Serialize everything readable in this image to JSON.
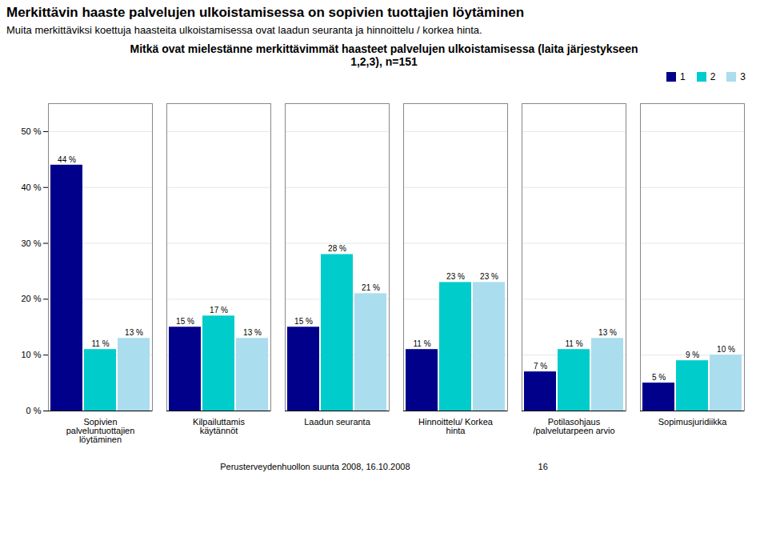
{
  "chart_data": {
    "type": "bar",
    "title": "Merkittävin haaste palvelujen ulkoistamisessa on sopivien tuottajien löytäminen",
    "subtitle": "Muita merkittäviksi koettuja haasteita ulkoistamisessa ovat laadun seuranta ja hinnoittelu / korkea hinta.",
    "chart_title": "Mitkä ovat mielestänne merkittävimmät haasteet palvelujen ulkoistamisessa (laita järjestykseen\n1,2,3), n=151",
    "annotations": [
      "Perusterveydenhuollon suunta 2008, 16.10.2008",
      "16"
    ],
    "categories": [
      "Sopivien\npalveluntuottajien\nlöytäminen",
      "Kilpailuttamis\nkäytännöt",
      "Laadun seuranta",
      "Hinnoittelu/ Korkea\nhinta",
      "Potilasohjaus\n/palvelutarpeen arvio",
      "Sopimusjuridiikka"
    ],
    "series": [
      {
        "name": "1",
        "color": "#00008B",
        "values": [
          44,
          15,
          15,
          11,
          7,
          5
        ],
        "value_labels": [
          "44 %",
          "15 %",
          "15 %",
          "11 %",
          "7 %",
          "5 %"
        ]
      },
      {
        "name": "2",
        "color": "#00CCCC",
        "values": [
          11,
          17,
          28,
          23,
          11,
          9
        ],
        "value_labels": [
          "11 %",
          "17 %",
          "28 %",
          "23 %",
          "11 %",
          "9 %"
        ]
      },
      {
        "name": "3",
        "color": "#AADDEE",
        "values": [
          13,
          13,
          21,
          23,
          13,
          10
        ],
        "value_labels": [
          "13 %",
          "13 %",
          "21 %",
          "23 %",
          "13 %",
          "10 %"
        ]
      }
    ],
    "ylim": [
      0,
      55
    ],
    "yticks": [
      {
        "value": 0,
        "label": "0 %"
      },
      {
        "value": 10,
        "label": "10 %"
      },
      {
        "value": 20,
        "label": "20 %"
      },
      {
        "value": 30,
        "label": "30 %"
      },
      {
        "value": 40,
        "label": "40 %"
      },
      {
        "value": 50,
        "label": "50 %"
      }
    ],
    "grid": true,
    "legend": "upper right",
    "data_labels": true
  }
}
